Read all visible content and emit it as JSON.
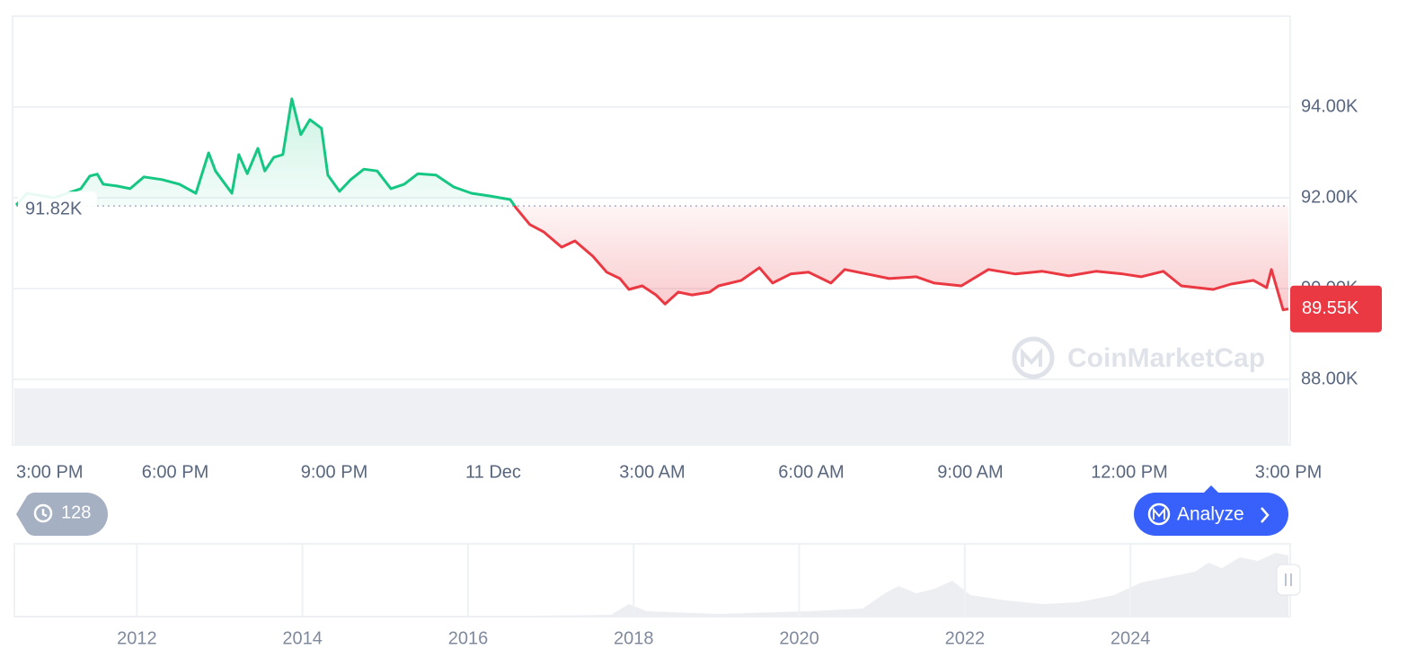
{
  "chart_data": {
    "type": "line",
    "xlim": [
      0,
      24
    ],
    "xticks": [
      {
        "value": 0,
        "label": "3:00 PM"
      },
      {
        "value": 3,
        "label": "6:00 PM"
      },
      {
        "value": 6,
        "label": "9:00 PM"
      },
      {
        "value": 9,
        "label": "11 Dec"
      },
      {
        "value": 12,
        "label": "3:00 AM"
      },
      {
        "value": 15,
        "label": "6:00 AM"
      },
      {
        "value": 18,
        "label": "9:00 AM"
      },
      {
        "value": 21,
        "label": "12:00 PM"
      },
      {
        "value": 24,
        "label": "3:00 PM"
      }
    ],
    "ylim": [
      88,
      96
    ],
    "yticks": [
      {
        "value": 88,
        "label": "88.00K"
      },
      {
        "value": 90,
        "label": "90.00K"
      },
      {
        "value": 92,
        "label": "92.00K"
      },
      {
        "value": 94,
        "label": "94.00K"
      }
    ],
    "grid": true,
    "up_color": "#16c784",
    "down_color": "#ea3943",
    "reference": {
      "value": 91.82,
      "label": "91.82K"
    },
    "last_price": {
      "value": 89.55,
      "label": "89.55K"
    },
    "x": [
      0,
      0.2,
      0.71,
      1.22,
      1.39,
      1.53,
      1.64,
      1.9,
      2.15,
      2.41,
      2.75,
      3.08,
      3.39,
      3.63,
      3.76,
      4.07,
      4.2,
      4.36,
      4.56,
      4.69,
      4.86,
      5.03,
      5.2,
      5.37,
      5.54,
      5.76,
      5.88,
      6.1,
      6.31,
      6.56,
      6.81,
      7.07,
      7.32,
      7.58,
      7.92,
      8.25,
      8.59,
      8.93,
      9.32,
      9.44,
      9.69,
      9.95,
      10.29,
      10.54,
      10.88,
      11.14,
      11.39,
      11.56,
      11.81,
      12.07,
      12.24,
      12.49,
      12.75,
      13.08,
      13.25,
      13.68,
      14.02,
      14.27,
      14.61,
      14.95,
      15.37,
      15.63,
      16.05,
      16.47,
      16.98,
      17.32,
      17.83,
      18.34,
      18.85,
      19.36,
      19.86,
      20.37,
      20.88,
      21.22,
      21.64,
      21.98,
      22.58,
      22.92,
      23.34,
      23.59,
      23.68,
      23.9,
      24
    ],
    "values": [
      91.84,
      92.1,
      92.0,
      92.2,
      92.48,
      92.52,
      92.3,
      92.26,
      92.2,
      92.46,
      92.4,
      92.3,
      92.1,
      92.99,
      92.59,
      92.1,
      92.95,
      92.53,
      93.09,
      92.59,
      92.89,
      92.95,
      94.18,
      93.39,
      93.72,
      93.53,
      92.5,
      92.14,
      92.4,
      92.63,
      92.59,
      92.2,
      92.3,
      92.53,
      92.5,
      92.24,
      92.1,
      92.04,
      91.96,
      91.76,
      91.41,
      91.25,
      90.91,
      91.05,
      90.71,
      90.36,
      90.22,
      89.98,
      90.06,
      89.86,
      89.66,
      89.92,
      89.86,
      89.92,
      90.06,
      90.18,
      90.46,
      90.12,
      90.32,
      90.36,
      90.12,
      90.42,
      90.32,
      90.22,
      90.26,
      90.12,
      90.06,
      90.42,
      90.32,
      90.38,
      90.28,
      90.38,
      90.32,
      90.26,
      90.38,
      90.06,
      89.98,
      90.1,
      90.18,
      90.02,
      90.42,
      89.53,
      89.55
    ],
    "watermark": "CoinMarketCap",
    "navigator": {
      "xlim": [
        2010.52,
        2025.93
      ],
      "xticks": [
        2012,
        2014,
        2016,
        2018,
        2020,
        2022,
        2024
      ]
    }
  },
  "ui": {
    "history_count": "128",
    "analyze_button": "Analyze"
  }
}
